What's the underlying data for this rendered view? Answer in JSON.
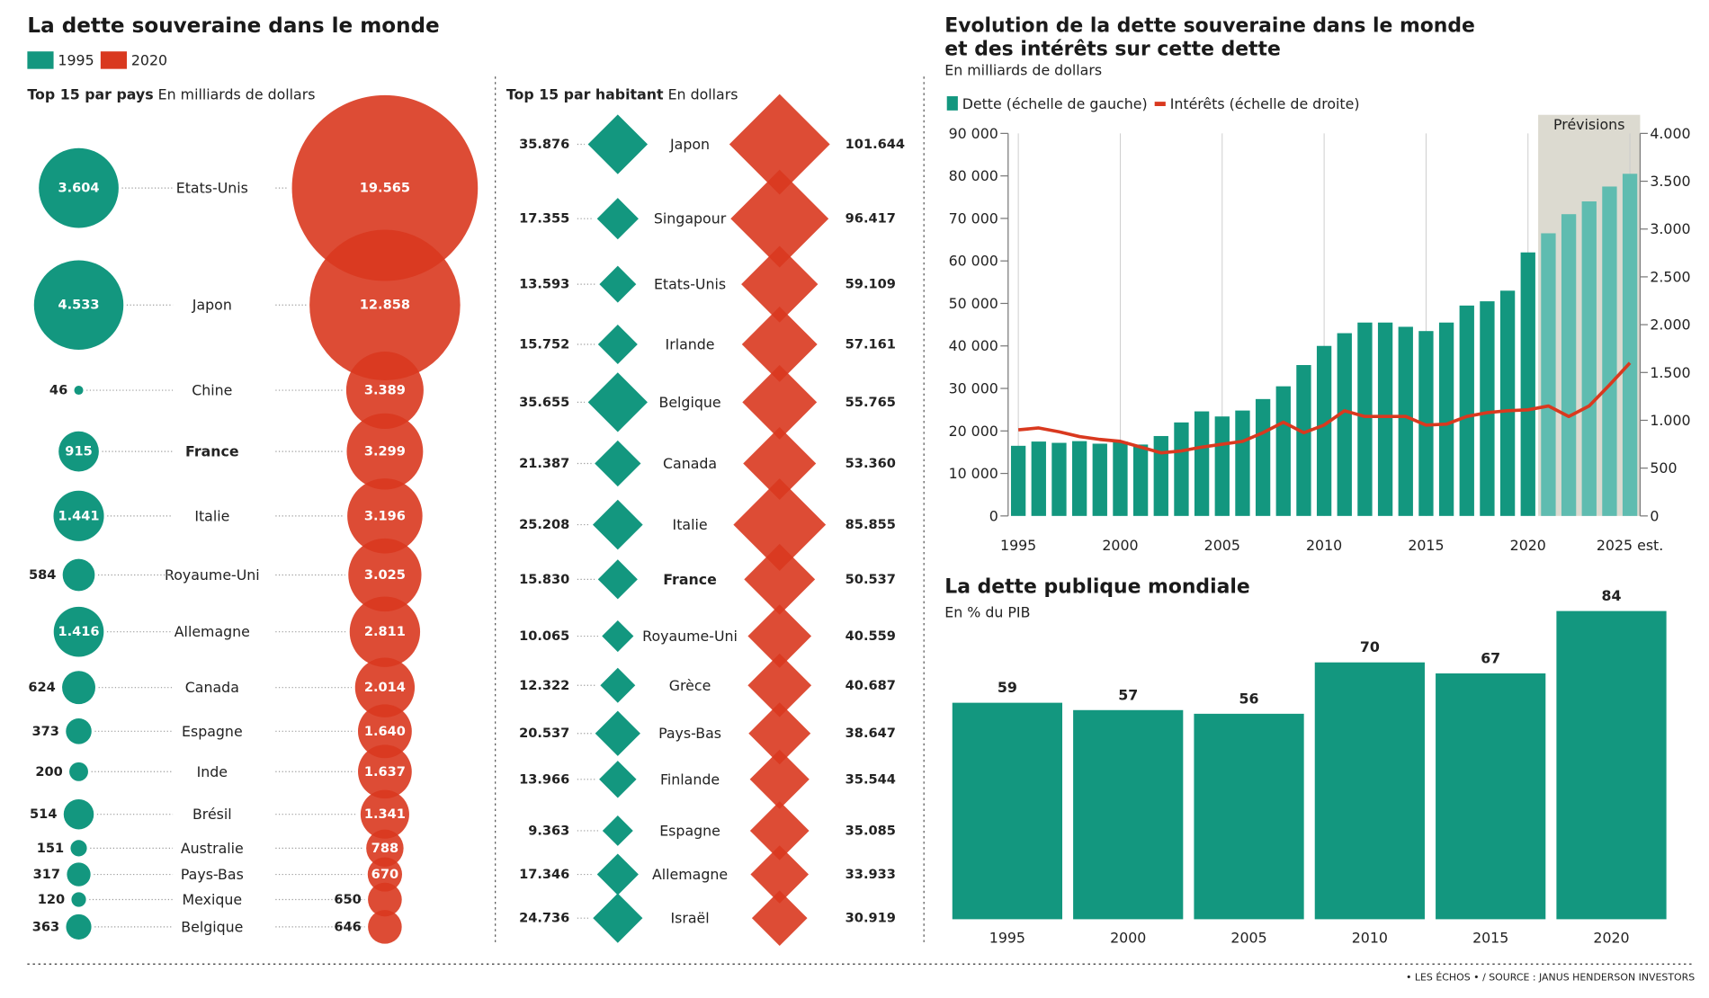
{
  "title": "La dette souveraine dans le monde",
  "source": "• LES ÉCHOS • / SOURCE : JANUS HENDERSON INVESTORS",
  "chart_data": [
    {
      "type": "bubble",
      "title": "Top 15 par pays",
      "subtitle": "En milliards de dollars",
      "highlight_category": "France",
      "categories": [
        "Etats-Unis",
        "Japon",
        "Chine",
        "France",
        "Italie",
        "Royaume-Uni",
        "Allemagne",
        "Canada",
        "Espagne",
        "Inde",
        "Brésil",
        "Australie",
        "Pays-Bas",
        "Mexique",
        "Belgique"
      ],
      "series": [
        {
          "name": "1995",
          "color": "#13977f",
          "values": [
            3604,
            4533,
            46,
            915,
            1441,
            584,
            1416,
            624,
            373,
            200,
            514,
            151,
            317,
            120,
            363
          ],
          "value_labels": [
            "3.604",
            "4.533",
            "46",
            "915",
            "1.441",
            "584",
            "1.416",
            "624",
            "373",
            "200",
            "514",
            "151",
            "317",
            "120",
            "363"
          ]
        },
        {
          "name": "2020",
          "color": "#d9391f",
          "values": [
            19565,
            12858,
            3389,
            3299,
            3196,
            3025,
            2811,
            2014,
            1640,
            1637,
            1341,
            788,
            670,
            650,
            646
          ],
          "value_labels": [
            "19.565",
            "12.858",
            "3.389",
            "3.299",
            "3.196",
            "3.025",
            "2.811",
            "2.014",
            "1.640",
            "1.637",
            "1.341",
            "788",
            "670",
            "650",
            "646"
          ]
        }
      ]
    },
    {
      "type": "diamond",
      "title": "Top 15 par habitant",
      "subtitle": "En dollars",
      "highlight_category": "France",
      "categories": [
        "Japon",
        "Singapour",
        "Etats-Unis",
        "Irlande",
        "Belgique",
        "Canada",
        "Italie",
        "France",
        "Royaume-Uni",
        "Grèce",
        "Pays-Bas",
        "Finlande",
        "Espagne",
        "Allemagne",
        "Israël"
      ],
      "series": [
        {
          "name": "1995",
          "color": "#13977f",
          "values": [
            35876,
            17355,
            13593,
            15752,
            35655,
            21387,
            25208,
            15830,
            10065,
            12322,
            20537,
            13966,
            9363,
            17346,
            24736
          ],
          "value_labels": [
            "35.876",
            "17.355",
            "13.593",
            "15.752",
            "35.655",
            "21.387",
            "25.208",
            "15.830",
            "10.065",
            "12.322",
            "20.537",
            "13.966",
            "9.363",
            "17.346",
            "24.736"
          ]
        },
        {
          "name": "2020",
          "color": "#d9391f",
          "values": [
            101644,
            96417,
            59109,
            57161,
            55765,
            53360,
            85855,
            50537,
            40559,
            40687,
            38647,
            35544,
            35085,
            33933,
            30919
          ],
          "value_labels": [
            "101.644",
            "96.417",
            "59.109",
            "57.161",
            "55.765",
            "53.360",
            "85.855",
            "50.537",
            "40.559",
            "40.687",
            "38.647",
            "35.544",
            "35.085",
            "33.933",
            "30.919"
          ]
        }
      ]
    },
    {
      "type": "bar-line",
      "title": [
        "Evolution de la dette souveraine dans le monde",
        "et des intérêts sur cette dette"
      ],
      "subtitle": "En milliards de dollars",
      "annotation": "Prévisions",
      "forecast": [
        2021,
        2025
      ],
      "forecast_color": "#5fbcb0",
      "grid": true,
      "x": [
        1995,
        1996,
        1997,
        1998,
        1999,
        2000,
        2001,
        2002,
        2003,
        2004,
        2005,
        2006,
        2007,
        2008,
        2009,
        2010,
        2011,
        2012,
        2013,
        2014,
        2015,
        2016,
        2017,
        2018,
        2019,
        2020,
        2021,
        2022,
        2023,
        2024,
        2025
      ],
      "xlim": [
        1994.5,
        2025.5
      ],
      "xticks": [
        1995,
        2000,
        2005,
        2010,
        2015,
        2020,
        {
          "value": 2025,
          "label": "2025 est."
        }
      ],
      "ylim": [
        0,
        90000
      ],
      "yticks": [
        0,
        {
          "value": 10000,
          "label": "10 000"
        },
        {
          "value": 20000,
          "label": "20 000"
        },
        {
          "value": 30000,
          "label": "30 000"
        },
        {
          "value": 40000,
          "label": "40 000"
        },
        {
          "value": 50000,
          "label": "50 000"
        },
        {
          "value": 60000,
          "label": "60 000"
        },
        {
          "value": 70000,
          "label": "70 000"
        },
        {
          "value": 80000,
          "label": "80 000"
        },
        {
          "value": 90000,
          "label": "90 000"
        }
      ],
      "y2lim": [
        0,
        4000
      ],
      "y2ticks": [
        0,
        500,
        {
          "value": 1000,
          "label": "1.000"
        },
        {
          "value": 1500,
          "label": "1.500"
        },
        {
          "value": 2000,
          "label": "2.000"
        },
        {
          "value": 2500,
          "label": "2.500"
        },
        {
          "value": 3000,
          "label": "3.000"
        },
        {
          "value": 3500,
          "label": "3.500"
        },
        {
          "value": 4000,
          "label": "4.000"
        }
      ],
      "series": [
        {
          "name": "Dette (échelle de gauche)",
          "color": "#13977f",
          "kind": "bar",
          "values": [
            16500,
            17500,
            17200,
            17600,
            17000,
            17500,
            16800,
            18800,
            22000,
            24600,
            23400,
            24800,
            27500,
            30500,
            35500,
            40000,
            43000,
            45500,
            45500,
            44500,
            43500,
            45500,
            49500,
            50500,
            53000,
            62000,
            66500,
            71000,
            74000,
            77500,
            80500
          ]
        },
        {
          "name": "Intérêts (échelle de droite)",
          "color": "#d9391f",
          "kind": "line",
          "axis": "y2",
          "values": [
            900,
            920,
            880,
            830,
            800,
            780,
            720,
            660,
            680,
            720,
            750,
            780,
            870,
            980,
            870,
            950,
            1100,
            1040,
            1040,
            1040,
            950,
            960,
            1040,
            1080,
            1100,
            1110,
            1150,
            1040,
            1150,
            1370,
            1600
          ]
        }
      ]
    },
    {
      "type": "bar",
      "title": "La dette publique mondiale",
      "subtitle": "En % du PIB",
      "color": "#13977f",
      "categories": [
        "1995",
        "2000",
        "2005",
        "2010",
        "2015",
        "2020"
      ],
      "values": [
        59,
        57,
        56,
        70,
        67,
        84
      ]
    }
  ]
}
